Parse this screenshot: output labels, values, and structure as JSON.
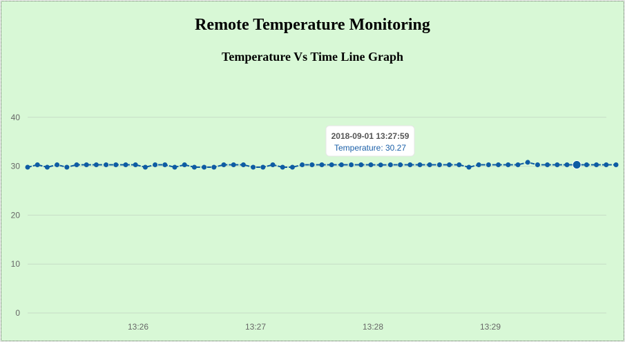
{
  "header": {
    "title": "Remote Temperature Monitoring",
    "subtitle": "Temperature Vs Time Line Graph"
  },
  "colors": {
    "background": "#d8f8d6",
    "series": "#0e5ca3",
    "grid": "#c6dcc6"
  },
  "tooltip": {
    "time": "2018-09-01 13:27:59",
    "label": "Temperature: 30.27"
  },
  "chart_data": {
    "type": "line",
    "title": "Temperature Vs Time Line Graph",
    "xlabel": "",
    "ylabel": "",
    "ylim": [
      0,
      45
    ],
    "yticks": [
      0,
      10,
      20,
      30,
      40
    ],
    "yticks_labels": [
      "0",
      "10",
      "20",
      "30",
      "40"
    ],
    "xticks_labels": [
      "13:26",
      "13:27",
      "13:28",
      "13:29"
    ],
    "grid": true,
    "legend": "none",
    "x_start": "13:25:12",
    "x_step_seconds": 3,
    "highlight_index": 56,
    "series": [
      {
        "name": "Temperature",
        "values": [
          29.8,
          30.3,
          29.8,
          30.3,
          29.8,
          30.3,
          30.3,
          30.3,
          30.3,
          30.3,
          30.3,
          30.3,
          29.8,
          30.3,
          30.3,
          29.8,
          30.3,
          29.8,
          29.8,
          29.8,
          30.3,
          30.3,
          30.3,
          29.8,
          29.8,
          30.3,
          29.8,
          29.8,
          30.3,
          30.3,
          30.3,
          30.3,
          30.3,
          30.3,
          30.3,
          30.3,
          30.27,
          30.3,
          30.3,
          30.3,
          30.3,
          30.3,
          30.3,
          30.3,
          30.3,
          29.8,
          30.3,
          30.3,
          30.3,
          30.3,
          30.3,
          30.8,
          30.3,
          30.3,
          30.3,
          30.3,
          30.3,
          30.3,
          30.3,
          30.3,
          30.3
        ]
      }
    ]
  }
}
